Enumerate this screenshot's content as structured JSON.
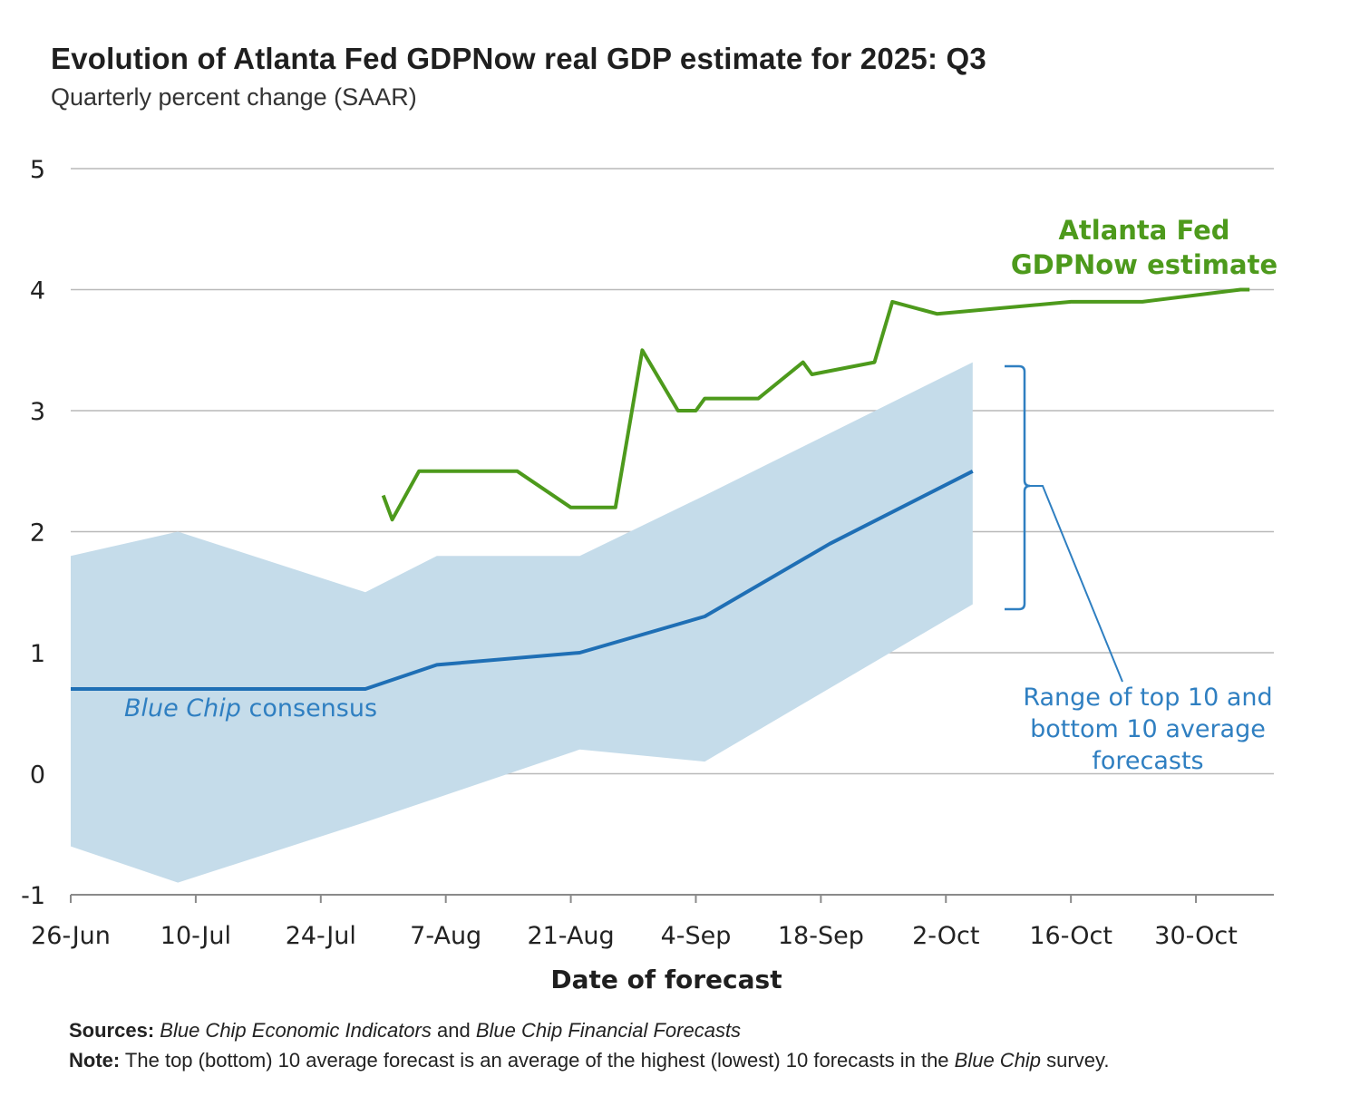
{
  "chart_data": {
    "type": "line",
    "title": "Evolution of Atlanta Fed GDPNow real GDP estimate for 2025: Q3",
    "subtitle": "Quarterly percent change (SAAR)",
    "xlabel": "Date of forecast",
    "ylabel": "",
    "ylim": [
      -1,
      5
    ],
    "yticks": [
      "5",
      "4",
      "3",
      "2",
      "1",
      "0",
      "-1"
    ],
    "ytick_values": [
      5,
      4,
      3,
      2,
      1,
      0,
      -1
    ],
    "xticks": [
      "26-Jun",
      "10-Jul",
      "24-Jul",
      "7-Aug",
      "21-Aug",
      "4-Sep",
      "18-Sep",
      "2-Oct",
      "16-Oct",
      "30-Oct"
    ],
    "x_unit": "days since 26-Jun",
    "xlim": [
      0,
      133
    ],
    "grid": true,
    "series": [
      {
        "name": "Atlanta Fed GDPNow estimate",
        "color": "#4d9a1c",
        "points": [
          [
            35,
            2.3
          ],
          [
            36,
            2.1
          ],
          [
            39,
            2.5
          ],
          [
            50,
            2.5
          ],
          [
            56,
            2.2
          ],
          [
            61,
            2.2
          ],
          [
            64,
            3.5
          ],
          [
            68,
            3.0
          ],
          [
            70,
            3.0
          ],
          [
            71,
            3.1
          ],
          [
            77,
            3.1
          ],
          [
            82,
            3.4
          ],
          [
            83,
            3.3
          ],
          [
            90,
            3.4
          ],
          [
            92,
            3.9
          ],
          [
            97,
            3.8
          ],
          [
            112,
            3.9
          ],
          [
            120,
            3.9
          ],
          [
            131,
            4.0
          ],
          [
            132,
            4.0
          ]
        ]
      },
      {
        "name": "Blue Chip consensus",
        "color": "#1f6fb5",
        "points": [
          [
            0,
            0.7
          ],
          [
            33,
            0.7
          ],
          [
            41,
            0.9
          ],
          [
            57,
            1.0
          ],
          [
            71,
            1.3
          ],
          [
            85,
            1.9
          ],
          [
            101,
            2.5
          ]
        ]
      }
    ],
    "band": {
      "name": "Range of top 10 and bottom 10 average forecasts",
      "color": "#c5dcea",
      "upper": [
        [
          0,
          1.8
        ],
        [
          12,
          2.0
        ],
        [
          33,
          1.5
        ],
        [
          41,
          1.8
        ],
        [
          57,
          1.8
        ],
        [
          71,
          2.3
        ],
        [
          101,
          3.4
        ]
      ],
      "lower": [
        [
          0,
          -0.6
        ],
        [
          12,
          -0.9
        ],
        [
          33,
          -0.4
        ],
        [
          41,
          -0.2
        ],
        [
          57,
          0.2
        ],
        [
          71,
          0.1
        ],
        [
          101,
          1.4
        ]
      ]
    },
    "annotations": {
      "gdpnow_lines": [
        "Atlanta Fed",
        "GDPNow estimate"
      ],
      "bluechip_label_italic": "Blue Chip",
      "bluechip_label_rest": " consensus",
      "range_lines": [
        "Range of top 10 and",
        "bottom 10 average",
        "forecasts"
      ]
    }
  },
  "notes": {
    "sources_label": "Sources:",
    "sources_part1": "Blue Chip Economic Indicators",
    "sources_and": " and ",
    "sources_part2": "Blue Chip Financial Forecasts",
    "note_label": "Note:",
    "note_text_1": " The top (bottom) 10 average forecast is an average of the highest (lowest) 10 forecasts in the ",
    "note_italic": "Blue Chip",
    "note_text_2": " survey."
  }
}
